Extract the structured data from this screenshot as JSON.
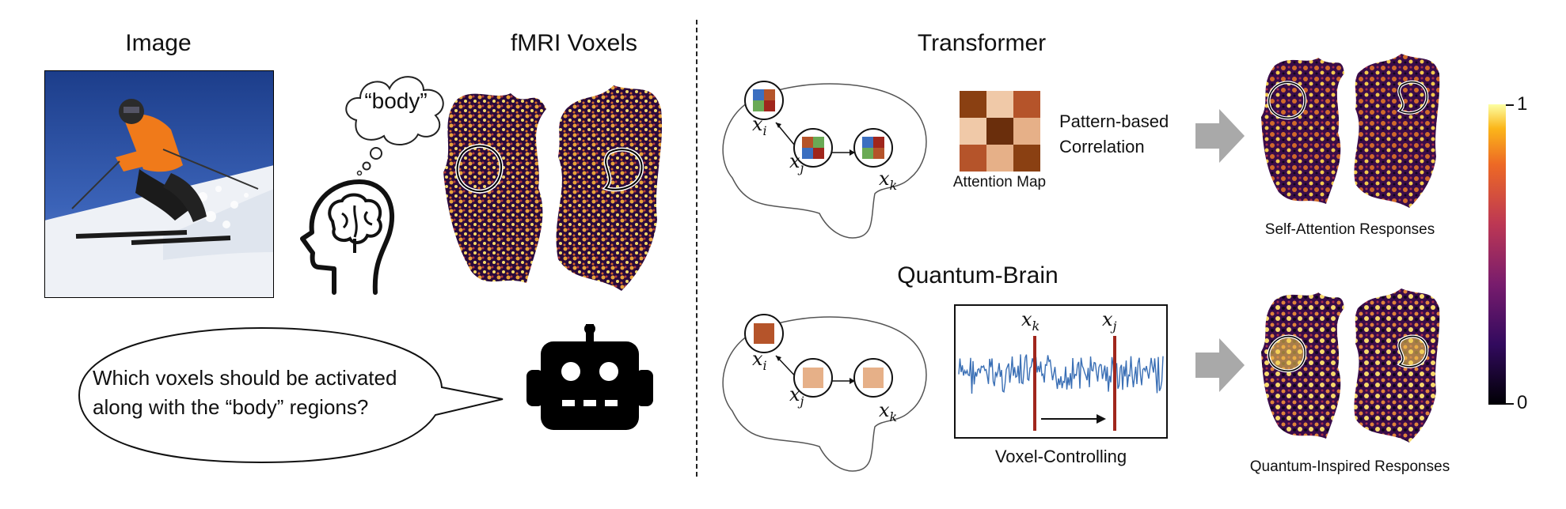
{
  "left": {
    "image_title": "Image",
    "fmri_title": "fMRI Voxels",
    "thought_text": "“body”",
    "question": "Which voxels should be activated along with the “body” regions?",
    "question_line1": "Which voxels should be activated",
    "question_line2": "along with the “body” regions?"
  },
  "transformer": {
    "title": "Transformer",
    "nodes": {
      "i": "x",
      "j": "x",
      "k": "x",
      "i_sub": "i",
      "j_sub": "j",
      "k_sub": "k"
    },
    "attention_label": "Attention Map",
    "correlation_line1": "Pattern-based",
    "correlation_line2": "Correlation",
    "response_label": "Self-Attention Responses"
  },
  "quantum": {
    "title": "Quantum-Brain",
    "nodes": {
      "i": "x",
      "j": "x",
      "k": "x",
      "i_sub": "i",
      "j_sub": "j",
      "k_sub": "k"
    },
    "signal_labels": {
      "k": "x",
      "k_sub": "k",
      "j": "x",
      "j_sub": "j"
    },
    "signal_caption": "Voxel-Controlling",
    "response_label": "Quantum-Inspired Responses"
  },
  "colorbar": {
    "max": "1",
    "min": "0"
  },
  "colors": {
    "accent_brown": "#b5542a",
    "light_peach": "#e6b088",
    "signal_blue": "#3a6fb5",
    "marker_red": "#a0261c",
    "arrow_gray": "#a9a9a9"
  }
}
